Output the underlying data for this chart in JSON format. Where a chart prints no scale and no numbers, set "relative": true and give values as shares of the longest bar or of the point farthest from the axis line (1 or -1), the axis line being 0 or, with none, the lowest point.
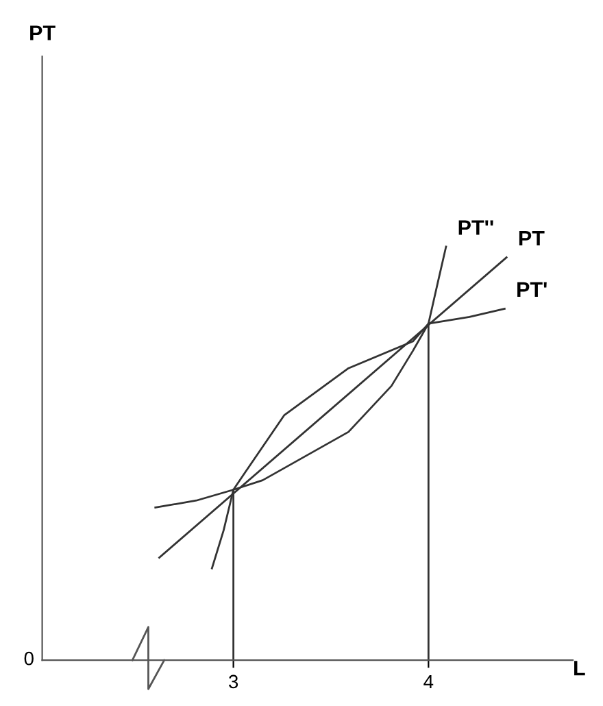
{
  "chart_data": {
    "type": "line",
    "relative": true,
    "xlabel": "L",
    "xlim": [
      2.02,
      4.74
    ],
    "xticks": [
      3,
      4
    ],
    "tick_labels": "x",
    "grid": false,
    "legend": false,
    "marker": "none",
    "line_style": "solid",
    "annotations": [
      "PT",
      "0"
    ],
    "series": [
      {
        "name": "PT''",
        "color": "#333333",
        "x": [
          2.89,
          2.95,
          3,
          3.15,
          3.59,
          3.81,
          3.92,
          4,
          4.05,
          4.09
        ],
        "values": [
          0.222,
          0.314,
          0.412,
          0.435,
          0.552,
          0.663,
          0.748,
          0.814,
          0.918,
          1.0
        ]
      },
      {
        "name": "PT",
        "color": "#333333",
        "x": [
          2.62,
          4.4
        ],
        "values": [
          0.248,
          0.974
        ]
      },
      {
        "name": "PT'",
        "color": "#333333",
        "x": [
          2.6,
          2.81,
          3,
          3.06,
          3.26,
          3.59,
          3.92,
          4,
          4.21,
          4.39
        ],
        "values": [
          0.369,
          0.386,
          0.412,
          0.454,
          0.592,
          0.706,
          0.771,
          0.814,
          0.83,
          0.85
        ]
      }
    ],
    "ref_lines": [
      {
        "axis": "x",
        "value": 3,
        "color": "#333333",
        "line_style": "solid"
      },
      {
        "axis": "x",
        "value": 4,
        "color": "#333333",
        "line_style": "solid"
      }
    ]
  }
}
